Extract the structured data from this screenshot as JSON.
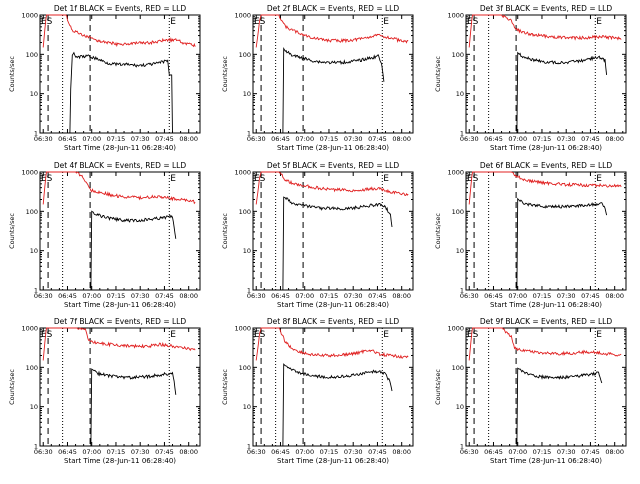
{
  "chart_data": [
    {
      "type": "line",
      "title": "Det 1f BLACK = Events, RED = LLD",
      "xlabel": "Start Time (28-Jun-11 06:28:40)",
      "ylabel": "Counts/sec",
      "xticks": [
        "06:30",
        "06:45",
        "07:00",
        "07:15",
        "07:30",
        "07:45",
        "08:00"
      ],
      "yticks": [
        "1",
        "10",
        "100",
        "1000"
      ],
      "xlim_minutes": [
        -2,
        97
      ],
      "ylim": [
        1,
        1000
      ],
      "yscale": "log",
      "markers": [
        "ES",
        "E"
      ],
      "series": [
        {
          "color": "#000000",
          "x": [
            16,
            17,
            18,
            19,
            20,
            28,
            34,
            40,
            46,
            52,
            58,
            64,
            70,
            74,
            77,
            78,
            80,
            82,
            85,
            88
          ],
          "y": [
            0,
            13,
            95,
            110,
            85,
            90,
            75,
            60,
            55,
            55,
            52,
            54,
            58,
            65,
            70,
            30,
            0,
            0,
            0,
            0
          ]
        },
        {
          "color": "#e02020",
          "x": [
            0,
            0.5,
            1.5,
            2,
            8,
            10,
            14,
            16,
            18,
            22,
            28,
            34,
            40,
            46,
            52,
            58,
            64,
            70,
            76,
            82,
            88,
            94
          ],
          "y": [
            150,
            250,
            700,
            1000,
            1000,
            1000,
            1000,
            600,
            410,
            340,
            270,
            220,
            200,
            180,
            185,
            190,
            195,
            205,
            235,
            230,
            190,
            170
          ]
        }
      ]
    },
    {
      "type": "line",
      "title": "Det 2f BLACK = Events, RED = LLD",
      "xlabel": "Start Time (28-Jun-11 06:28:40)",
      "ylabel": "Counts/sec",
      "xticks": [
        "06:30",
        "06:45",
        "07:00",
        "07:15",
        "07:30",
        "07:45",
        "08:00"
      ],
      "yticks": [
        "1",
        "10",
        "100",
        "1000"
      ],
      "xlim_minutes": [
        -2,
        97
      ],
      "ylim": [
        1,
        1000
      ],
      "yscale": "log",
      "markers": [
        "ES",
        "E"
      ],
      "series": [
        {
          "color": "#000000",
          "x": [
            16,
            17,
            18,
            20,
            22,
            28,
            34,
            40,
            46,
            52,
            58,
            64,
            70,
            76,
            78,
            79
          ],
          "y": [
            0,
            140,
            120,
            110,
            95,
            82,
            70,
            64,
            62,
            62,
            65,
            70,
            80,
            90,
            45,
            20
          ]
        },
        {
          "color": "#e02020",
          "x": [
            0,
            1,
            2,
            3,
            8,
            12,
            14,
            18,
            22,
            28,
            34,
            40,
            46,
            52,
            58,
            64,
            70,
            76,
            82,
            88,
            94
          ],
          "y": [
            150,
            300,
            700,
            1000,
            1000,
            1000,
            1000,
            500,
            420,
            330,
            270,
            240,
            225,
            220,
            230,
            245,
            280,
            300,
            270,
            230,
            205
          ]
        }
      ]
    },
    {
      "type": "line",
      "title": "Det 3f BLACK = Events, RED = LLD",
      "xlabel": "Start Time (28-Jun-11 06:28:40)",
      "ylabel": "Counts/sec",
      "xticks": [
        "06:30",
        "06:45",
        "07:00",
        "07:15",
        "07:30",
        "07:45",
        "08:00"
      ],
      "yticks": [
        "1",
        "10",
        "100",
        "1000"
      ],
      "xlim_minutes": [
        -2,
        97
      ],
      "ylim": [
        1,
        1000
      ],
      "yscale": "log",
      "markers": [
        "ES",
        "E"
      ],
      "series": [
        {
          "color": "#000000",
          "x": [
            29,
            30,
            31,
            34,
            40,
            46,
            52,
            58,
            64,
            70,
            76,
            80,
            84,
            85
          ],
          "y": [
            0,
            110,
            100,
            85,
            72,
            64,
            62,
            62,
            65,
            70,
            78,
            85,
            70,
            30
          ]
        },
        {
          "color": "#e02020",
          "x": [
            0,
            0.5,
            1.5,
            2,
            8,
            12,
            20,
            26,
            29,
            32,
            38,
            44,
            50,
            56,
            62,
            68,
            74,
            80,
            86,
            94
          ],
          "y": [
            150,
            250,
            700,
            1000,
            1000,
            1000,
            1000,
            700,
            420,
            380,
            320,
            300,
            280,
            270,
            265,
            260,
            265,
            280,
            270,
            250
          ]
        }
      ]
    },
    {
      "type": "line",
      "title": "Det 4f BLACK = Events, RED = LLD",
      "xlabel": "Start Time (28-Jun-11 06:28:40)",
      "ylabel": "Counts/sec",
      "xticks": [
        "06:30",
        "06:45",
        "07:00",
        "07:15",
        "07:30",
        "07:45",
        "08:00"
      ],
      "yticks": [
        "1",
        "10",
        "100",
        "1000"
      ],
      "xlim_minutes": [
        -2,
        97
      ],
      "ylim": [
        1,
        1000
      ],
      "yscale": "log",
      "markers": [
        "ES",
        "E"
      ],
      "series": [
        {
          "color": "#000000",
          "x": [
            29,
            30,
            31,
            34,
            40,
            46,
            52,
            58,
            64,
            70,
            76,
            80,
            81,
            82
          ],
          "y": [
            0,
            100,
            95,
            80,
            68,
            62,
            58,
            58,
            62,
            66,
            70,
            75,
            40,
            20
          ]
        },
        {
          "color": "#e02020",
          "x": [
            0,
            0.5,
            1.5,
            2,
            8,
            12,
            20,
            24,
            28,
            30,
            36,
            42,
            48,
            54,
            60,
            66,
            72,
            78,
            84,
            90,
            94
          ],
          "y": [
            150,
            250,
            700,
            1000,
            1000,
            1000,
            1000,
            800,
            420,
            340,
            300,
            260,
            240,
            230,
            220,
            230,
            240,
            215,
            200,
            190,
            170
          ]
        }
      ]
    },
    {
      "type": "line",
      "title": "Det 5f BLACK = Events, RED = LLD",
      "xlabel": "Start Time (28-Jun-11 06:28:40)",
      "ylabel": "Counts/sec",
      "xticks": [
        "06:30",
        "06:45",
        "07:00",
        "07:15",
        "07:30",
        "07:45",
        "08:00"
      ],
      "yticks": [
        "1",
        "10",
        "100",
        "1000"
      ],
      "xlim_minutes": [
        -2,
        97
      ],
      "ylim": [
        1,
        1000
      ],
      "yscale": "log",
      "markers": [
        "ES",
        "E"
      ],
      "series": [
        {
          "color": "#000000",
          "x": [
            16,
            17,
            18,
            20,
            22,
            28,
            34,
            40,
            46,
            52,
            58,
            64,
            70,
            76,
            80,
            83,
            84
          ],
          "y": [
            0,
            230,
            220,
            190,
            160,
            140,
            130,
            120,
            118,
            118,
            120,
            128,
            140,
            150,
            130,
            80,
            40
          ]
        },
        {
          "color": "#e02020",
          "x": [
            0,
            1,
            2,
            3,
            8,
            12,
            14,
            18,
            22,
            28,
            34,
            40,
            46,
            52,
            58,
            64,
            70,
            76,
            82,
            88,
            94
          ],
          "y": [
            150,
            300,
            700,
            1000,
            1000,
            1000,
            1000,
            650,
            520,
            460,
            420,
            380,
            360,
            350,
            340,
            345,
            370,
            380,
            320,
            290,
            260
          ]
        }
      ]
    },
    {
      "type": "line",
      "title": "Det 6f BLACK = Events, RED = LLD",
      "xlabel": "Start Time (28-Jun-11 06:28:40)",
      "ylabel": "Counts/sec",
      "xticks": [
        "06:30",
        "06:45",
        "07:00",
        "07:15",
        "07:30",
        "07:45",
        "08:00"
      ],
      "yticks": [
        "1",
        "10",
        "100",
        "1000"
      ],
      "xlim_minutes": [
        -2,
        97
      ],
      "ylim": [
        1,
        1000
      ],
      "yscale": "log",
      "markers": [
        "ES",
        "E"
      ],
      "series": [
        {
          "color": "#000000",
          "x": [
            29,
            30,
            31,
            34,
            40,
            46,
            52,
            58,
            64,
            70,
            76,
            82,
            84,
            85
          ],
          "y": [
            0,
            210,
            190,
            160,
            140,
            135,
            132,
            132,
            135,
            140,
            150,
            160,
            120,
            80
          ]
        },
        {
          "color": "#e02020",
          "x": [
            0,
            0.5,
            1.5,
            2,
            8,
            20,
            26,
            30,
            36,
            42,
            48,
            54,
            60,
            66,
            72,
            78,
            84,
            90,
            94
          ],
          "y": [
            150,
            250,
            700,
            1000,
            1000,
            1000,
            1000,
            750,
            600,
            560,
            520,
            500,
            480,
            470,
            460,
            460,
            450,
            440,
            430
          ]
        }
      ]
    },
    {
      "type": "line",
      "title": "Det 7f BLACK = Events, RED = LLD",
      "xlabel": "Start Time (28-Jun-11 06:28:40)",
      "ylabel": "Counts/sec",
      "xticks": [
        "06:30",
        "06:45",
        "07:00",
        "07:15",
        "07:30",
        "07:45",
        "08:00"
      ],
      "yticks": [
        "1",
        "10",
        "100",
        "1000"
      ],
      "xlim_minutes": [
        -2,
        97
      ],
      "ylim": [
        1,
        1000
      ],
      "yscale": "log",
      "markers": [
        "ES",
        "E"
      ],
      "series": [
        {
          "color": "#000000",
          "x": [
            29,
            30,
            31,
            34,
            40,
            46,
            52,
            58,
            64,
            70,
            76,
            80,
            81,
            82
          ],
          "y": [
            0,
            90,
            85,
            70,
            62,
            58,
            55,
            56,
            58,
            62,
            68,
            70,
            45,
            20
          ]
        },
        {
          "color": "#e02020",
          "x": [
            0,
            0.5,
            1.5,
            2,
            8,
            12,
            20,
            26,
            28,
            30,
            36,
            42,
            48,
            54,
            60,
            66,
            72,
            78,
            84,
            90,
            94
          ],
          "y": [
            150,
            250,
            700,
            1000,
            1000,
            1000,
            1000,
            900,
            520,
            440,
            400,
            380,
            360,
            350,
            340,
            350,
            380,
            360,
            320,
            300,
            280
          ]
        }
      ]
    },
    {
      "type": "line",
      "title": "Det 8f BLACK = Events, RED = LLD",
      "xlabel": "Start Time (28-Jun-11 06:28:40)",
      "ylabel": "Counts/sec",
      "xticks": [
        "06:30",
        "06:45",
        "07:00",
        "07:15",
        "07:30",
        "07:45",
        "08:00"
      ],
      "yticks": [
        "1",
        "10",
        "100",
        "1000"
      ],
      "xlim_minutes": [
        -2,
        97
      ],
      "ylim": [
        1,
        1000
      ],
      "yscale": "log",
      "markers": [
        "ES",
        "E"
      ],
      "series": [
        {
          "color": "#000000",
          "x": [
            16,
            17,
            18,
            20,
            22,
            28,
            34,
            40,
            46,
            52,
            58,
            64,
            70,
            76,
            80,
            83,
            84
          ],
          "y": [
            0,
            120,
            110,
            95,
            85,
            70,
            62,
            58,
            56,
            58,
            62,
            68,
            75,
            80,
            70,
            40,
            25
          ]
        },
        {
          "color": "#e02020",
          "x": [
            0,
            1,
            2,
            3,
            8,
            12,
            14,
            18,
            22,
            28,
            34,
            40,
            46,
            52,
            58,
            64,
            70,
            76,
            82,
            88,
            94
          ],
          "y": [
            150,
            300,
            700,
            1000,
            1000,
            1000,
            1000,
            450,
            300,
            240,
            210,
            200,
            200,
            205,
            215,
            240,
            280,
            220,
            200,
            190,
            180
          ]
        }
      ]
    },
    {
      "type": "line",
      "title": "Det 9f BLACK = Events, RED = LLD",
      "xlabel": "Start Time (28-Jun-11 06:28:40)",
      "ylabel": "Counts/sec",
      "xticks": [
        "06:30",
        "06:45",
        "07:00",
        "07:15",
        "07:30",
        "07:45",
        "08:00"
      ],
      "yticks": [
        "1",
        "10",
        "100",
        "1000"
      ],
      "xlim_minutes": [
        -2,
        97
      ],
      "ylim": [
        1,
        1000
      ],
      "yscale": "log",
      "markers": [
        "ES",
        "E"
      ],
      "series": [
        {
          "color": "#000000",
          "x": [
            29,
            30,
            31,
            34,
            40,
            46,
            52,
            58,
            64,
            70,
            76,
            80,
            81,
            82
          ],
          "y": [
            0,
            95,
            90,
            72,
            62,
            56,
            54,
            55,
            58,
            62,
            68,
            72,
            55,
            40
          ]
        },
        {
          "color": "#e02020",
          "x": [
            0,
            0.5,
            1.5,
            2,
            8,
            12,
            20,
            26,
            28,
            30,
            36,
            42,
            48,
            54,
            60,
            66,
            72,
            78,
            84,
            90,
            94
          ],
          "y": [
            150,
            250,
            700,
            1000,
            1000,
            1000,
            1000,
            600,
            330,
            290,
            260,
            240,
            230,
            225,
            225,
            230,
            250,
            240,
            220,
            210,
            200
          ]
        }
      ]
    }
  ]
}
